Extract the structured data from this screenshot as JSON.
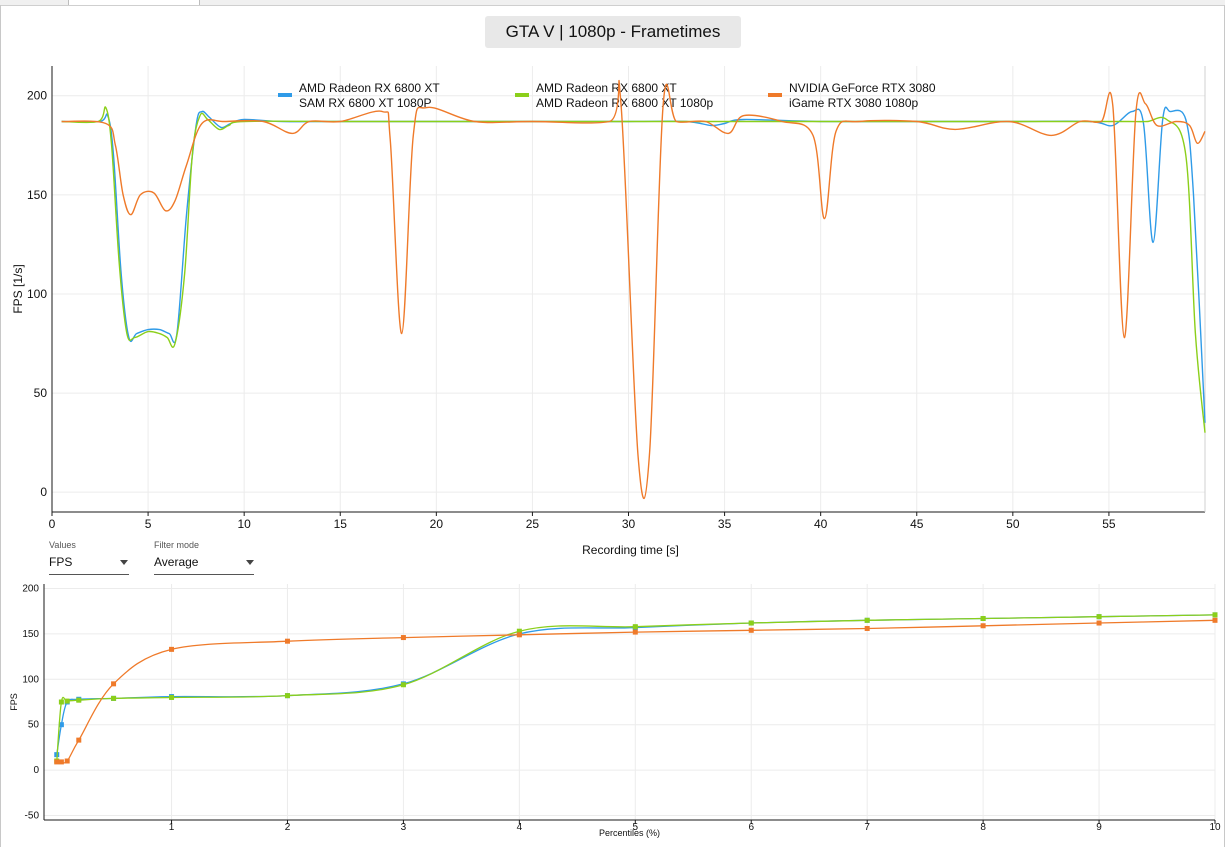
{
  "tabs": [
    {
      "label": ""
    },
    {
      "label": ""
    }
  ],
  "colors": {
    "blue": "#2f9be8",
    "green": "#8bcf1a",
    "orange": "#ef7a2a",
    "grid": "#ececec",
    "axis": "#1a1a1a"
  },
  "controls": {
    "values_label": "Values",
    "values_selected": "FPS",
    "filter_label": "Filter mode",
    "filter_selected": "Average"
  },
  "chart_data": [
    {
      "type": "line",
      "title": "GTA V | 1080p - Frametimes",
      "xlabel": "Recording time [s]",
      "ylabel": "FPS [1/s]",
      "xlim": [
        0,
        60
      ],
      "ylim": [
        -10,
        215
      ],
      "x_ticks": [
        0,
        5,
        10,
        15,
        20,
        25,
        30,
        35,
        40,
        45,
        50,
        55
      ],
      "y_ticks": [
        0,
        50,
        100,
        150,
        200
      ],
      "grid": true,
      "legend_position": "top",
      "series": [
        {
          "name": "AMD Radeon RX 6800 XT",
          "subtitle": "SAM RX 6800 XT 1080P",
          "color": "#2f9be8",
          "x": [
            0.5,
            2.5,
            2.9,
            3.2,
            3.6,
            4.0,
            4.4,
            5.0,
            5.6,
            6.1,
            6.5,
            7.0,
            7.5,
            7.8,
            8.2,
            8.8,
            9.3,
            10.0,
            12,
            15,
            20,
            25,
            30,
            33,
            34.3,
            35,
            36,
            40,
            45,
            50,
            54,
            55.2,
            56.2,
            56.8,
            57.3,
            57.8,
            58.2,
            59.0,
            59.4,
            60
          ],
          "y": [
            187,
            187,
            190,
            170,
            110,
            78,
            80,
            82,
            82,
            80,
            80,
            140,
            185,
            192,
            189,
            184,
            186,
            188,
            187,
            187,
            187,
            187,
            187,
            187,
            185,
            186,
            188,
            187,
            187,
            187,
            187,
            185,
            192,
            186,
            126,
            188,
            192,
            188,
            150,
            35
          ]
        },
        {
          "name": "AMD Radeon RX 6800 XT",
          "subtitle": "AMD Radeon RX 6800 XT 1080p",
          "color": "#8bcf1a",
          "x": [
            0.5,
            2.4,
            2.8,
            3.1,
            3.5,
            3.9,
            4.3,
            5.0,
            5.6,
            6.0,
            6.4,
            6.9,
            7.3,
            7.7,
            8.1,
            8.7,
            9.2,
            10.0,
            15,
            20,
            25,
            30,
            35,
            40,
            45,
            50,
            55,
            56,
            57,
            58,
            59.0,
            59.5,
            60
          ],
          "y": [
            187,
            187,
            194,
            175,
            115,
            80,
            78,
            81,
            80,
            78,
            75,
            110,
            170,
            190,
            188,
            183,
            185,
            187,
            187,
            187,
            187,
            187,
            187,
            187,
            187,
            187,
            187,
            187,
            187,
            188,
            170,
            80,
            30
          ]
        },
        {
          "name": "NVIDIA GeForce RTX 3080",
          "subtitle": "iGame RTX 3080 1080p",
          "color": "#ef7a2a",
          "x": [
            0.5,
            2.8,
            3.3,
            3.7,
            4.1,
            4.6,
            5.3,
            5.9,
            6.4,
            7.0,
            7.8,
            9,
            11,
            12.5,
            13.4,
            15,
            17.2,
            17.6,
            18.2,
            18.8,
            19.5,
            22,
            25,
            29,
            29.6,
            30.5,
            31.1,
            31.8,
            32.5,
            34,
            35.2,
            36,
            38,
            39.6,
            40.2,
            40.8,
            42,
            45,
            47,
            49.8,
            52,
            53.5,
            54.6,
            55.2,
            55.8,
            56.4,
            56.9,
            57.5,
            58.5,
            59.2,
            59.6,
            60
          ],
          "y": [
            187,
            186,
            175,
            150,
            140,
            150,
            151,
            142,
            147,
            165,
            186,
            187,
            187,
            181,
            187,
            187,
            192,
            178,
            80,
            180,
            194,
            187,
            187,
            187,
            197,
            18,
            20,
            195,
            187,
            187,
            181,
            190,
            187,
            180,
            138,
            182,
            187,
            187,
            183,
            187,
            180,
            187,
            187,
            195,
            78,
            191,
            196,
            185,
            187,
            185,
            176,
            182
          ]
        }
      ]
    },
    {
      "type": "line",
      "title": "",
      "xlabel": "Percentiles (%)",
      "ylabel": "FPS",
      "xlim": [
        -0.1,
        10
      ],
      "ylim": [
        -55,
        205
      ],
      "x_ticks": [
        1,
        2,
        3,
        4,
        5,
        6,
        7,
        8,
        9,
        10
      ],
      "y_ticks": [
        -50,
        0,
        50,
        100,
        150,
        200
      ],
      "grid": true,
      "series": [
        {
          "color": "#2f9be8",
          "x": [
            0.01,
            0.05,
            0.1,
            0.2,
            0.5,
            1,
            2,
            3,
            4,
            5,
            6,
            7,
            8,
            9,
            10
          ],
          "y": [
            17,
            50,
            75,
            78,
            79,
            81,
            82,
            95,
            150,
            157,
            162,
            165,
            167,
            169,
            171
          ]
        },
        {
          "color": "#8bcf1a",
          "x": [
            0.01,
            0.05,
            0.1,
            0.2,
            0.5,
            1,
            2,
            3,
            4,
            5,
            6,
            7,
            8,
            9,
            10
          ],
          "y": [
            10,
            75,
            76,
            77,
            79,
            80,
            82,
            94,
            153,
            158,
            162,
            165,
            167,
            169,
            171
          ]
        },
        {
          "color": "#ef7a2a",
          "x": [
            0.01,
            0.05,
            0.1,
            0.2,
            0.5,
            1,
            2,
            3,
            4,
            5,
            6,
            7,
            8,
            9,
            10
          ],
          "y": [
            9,
            9,
            10,
            33,
            95,
            133,
            142,
            146,
            149,
            152,
            154,
            156,
            159,
            162,
            165
          ]
        }
      ]
    }
  ]
}
